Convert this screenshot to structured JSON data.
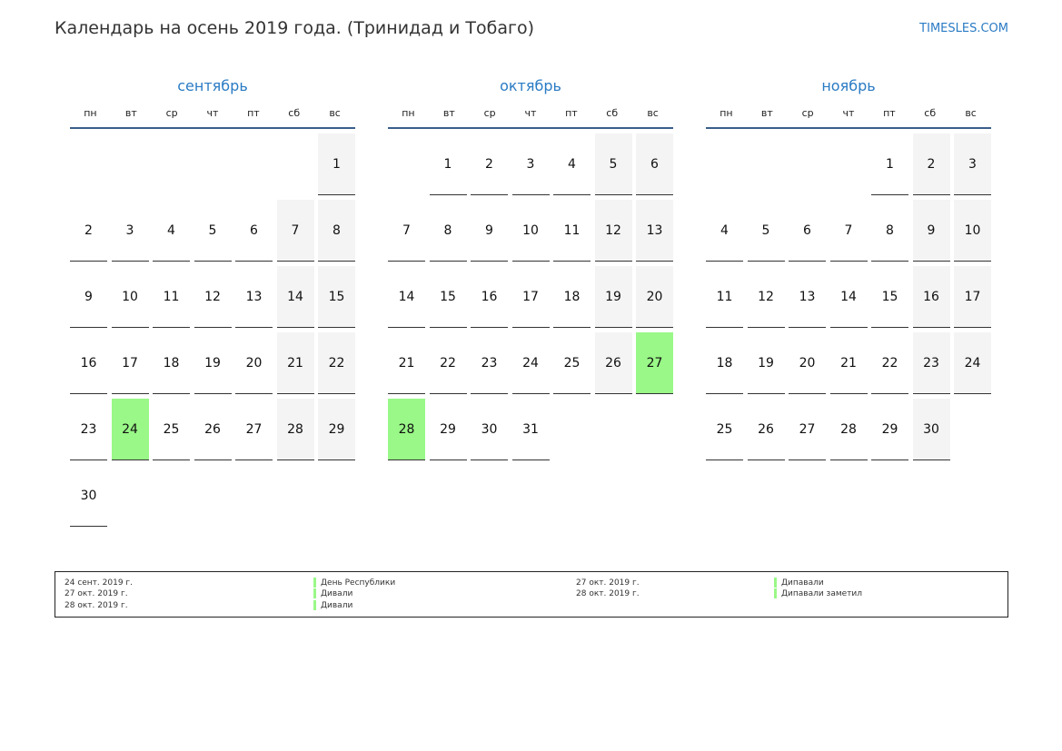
{
  "header": {
    "title": "Календарь на осень 2019 года. (Тринидад и Тобаго)",
    "brand": "TIMESLES.COM"
  },
  "weekdays": [
    "пн",
    "вт",
    "ср",
    "чт",
    "пт",
    "сб",
    "вс"
  ],
  "colors": {
    "accent": "#2a7bc4",
    "holiday": "#99f887",
    "weekend": "#f4f4f4"
  },
  "months": [
    {
      "name": "сентябрь",
      "first_weekday": 7,
      "days": 30,
      "holidays": [
        24
      ]
    },
    {
      "name": "октябрь",
      "first_weekday": 2,
      "days": 31,
      "holidays": [
        27,
        28
      ]
    },
    {
      "name": "ноябрь",
      "first_weekday": 5,
      "days": 30,
      "holidays": []
    }
  ],
  "legend": [
    {
      "date": "24 сент. 2019 г.",
      "name": "День Республики"
    },
    {
      "date": "27 окт. 2019 г.",
      "name": "Дивали"
    },
    {
      "date": "28 окт. 2019 г.",
      "name": "Дивали"
    },
    {
      "date": "27 окт. 2019 г.",
      "name": "Дипавали"
    },
    {
      "date": "28 окт. 2019 г.",
      "name": "Дипавали заметил"
    }
  ]
}
